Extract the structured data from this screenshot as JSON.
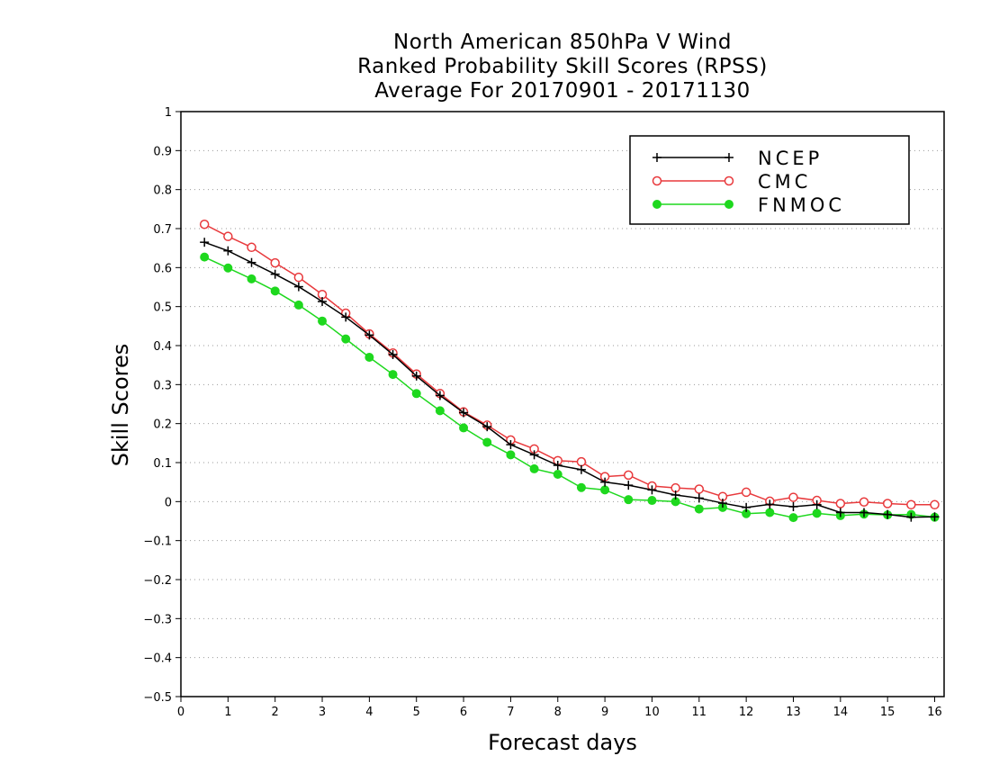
{
  "chart_data": {
    "type": "line",
    "title_lines": [
      "North American 850hPa V Wind",
      "Ranked Probability Skill Scores (RPSS)",
      "Average For 20170901 - 20171130"
    ],
    "xlabel": "Forecast days",
    "ylabel": "Skill Scores",
    "xlim": [
      0,
      16.2
    ],
    "ylim": [
      -0.5,
      1
    ],
    "xticks": [
      "0",
      "1",
      "2",
      "3",
      "4",
      "5",
      "6",
      "7",
      "8",
      "9",
      "10",
      "11",
      "12",
      "13",
      "14",
      "15",
      "16"
    ],
    "yticks": [
      "1",
      "0.9",
      "0.8",
      "0.7",
      "0.6",
      "0.5",
      "0.4",
      "0.3",
      "0.2",
      "0.1",
      "0",
      "−0.1",
      "−0.2",
      "−0.3",
      "−0.4",
      "−0.5"
    ],
    "grid": true,
    "legend_position": "top-right",
    "x": [
      0.5,
      1,
      1.5,
      2,
      2.5,
      3,
      3.5,
      4,
      4.5,
      5,
      5.5,
      6,
      6.5,
      7,
      7.5,
      8,
      8.5,
      9,
      9.5,
      10,
      10.5,
      11,
      11.5,
      12,
      12.5,
      13,
      13.5,
      14,
      14.5,
      15,
      15.5,
      16
    ],
    "series": [
      {
        "name": "NCEP",
        "color": "#000000",
        "marker": "plus",
        "values": [
          0.665,
          0.643,
          0.613,
          0.583,
          0.551,
          0.513,
          0.473,
          0.427,
          0.377,
          0.322,
          0.272,
          0.228,
          0.192,
          0.146,
          0.12,
          0.093,
          0.082,
          0.05,
          0.042,
          0.03,
          0.017,
          0.009,
          -0.004,
          -0.015,
          -0.007,
          -0.013,
          -0.008,
          -0.028,
          -0.028,
          -0.033,
          -0.04,
          -0.039
        ]
      },
      {
        "name": "CMC",
        "color": "#e8393c",
        "marker": "open-circle",
        "values": [
          0.711,
          0.68,
          0.652,
          0.612,
          0.575,
          0.531,
          0.483,
          0.43,
          0.381,
          0.327,
          0.277,
          0.23,
          0.196,
          0.158,
          0.135,
          0.105,
          0.102,
          0.064,
          0.068,
          0.04,
          0.035,
          0.032,
          0.013,
          0.024,
          0.001,
          0.011,
          0.003,
          -0.005,
          -0.001,
          -0.005,
          -0.008,
          -0.008
        ]
      },
      {
        "name": "FNMOC",
        "color": "#1ed81e",
        "marker": "filled-circle",
        "values": [
          0.627,
          0.599,
          0.571,
          0.54,
          0.504,
          0.463,
          0.417,
          0.37,
          0.326,
          0.277,
          0.233,
          0.189,
          0.152,
          0.12,
          0.084,
          0.07,
          0.036,
          0.03,
          0.005,
          0.003,
          0.0,
          -0.019,
          -0.015,
          -0.031,
          -0.028,
          -0.041,
          -0.03,
          -0.036,
          -0.032,
          -0.034,
          -0.033,
          -0.04
        ]
      }
    ]
  }
}
